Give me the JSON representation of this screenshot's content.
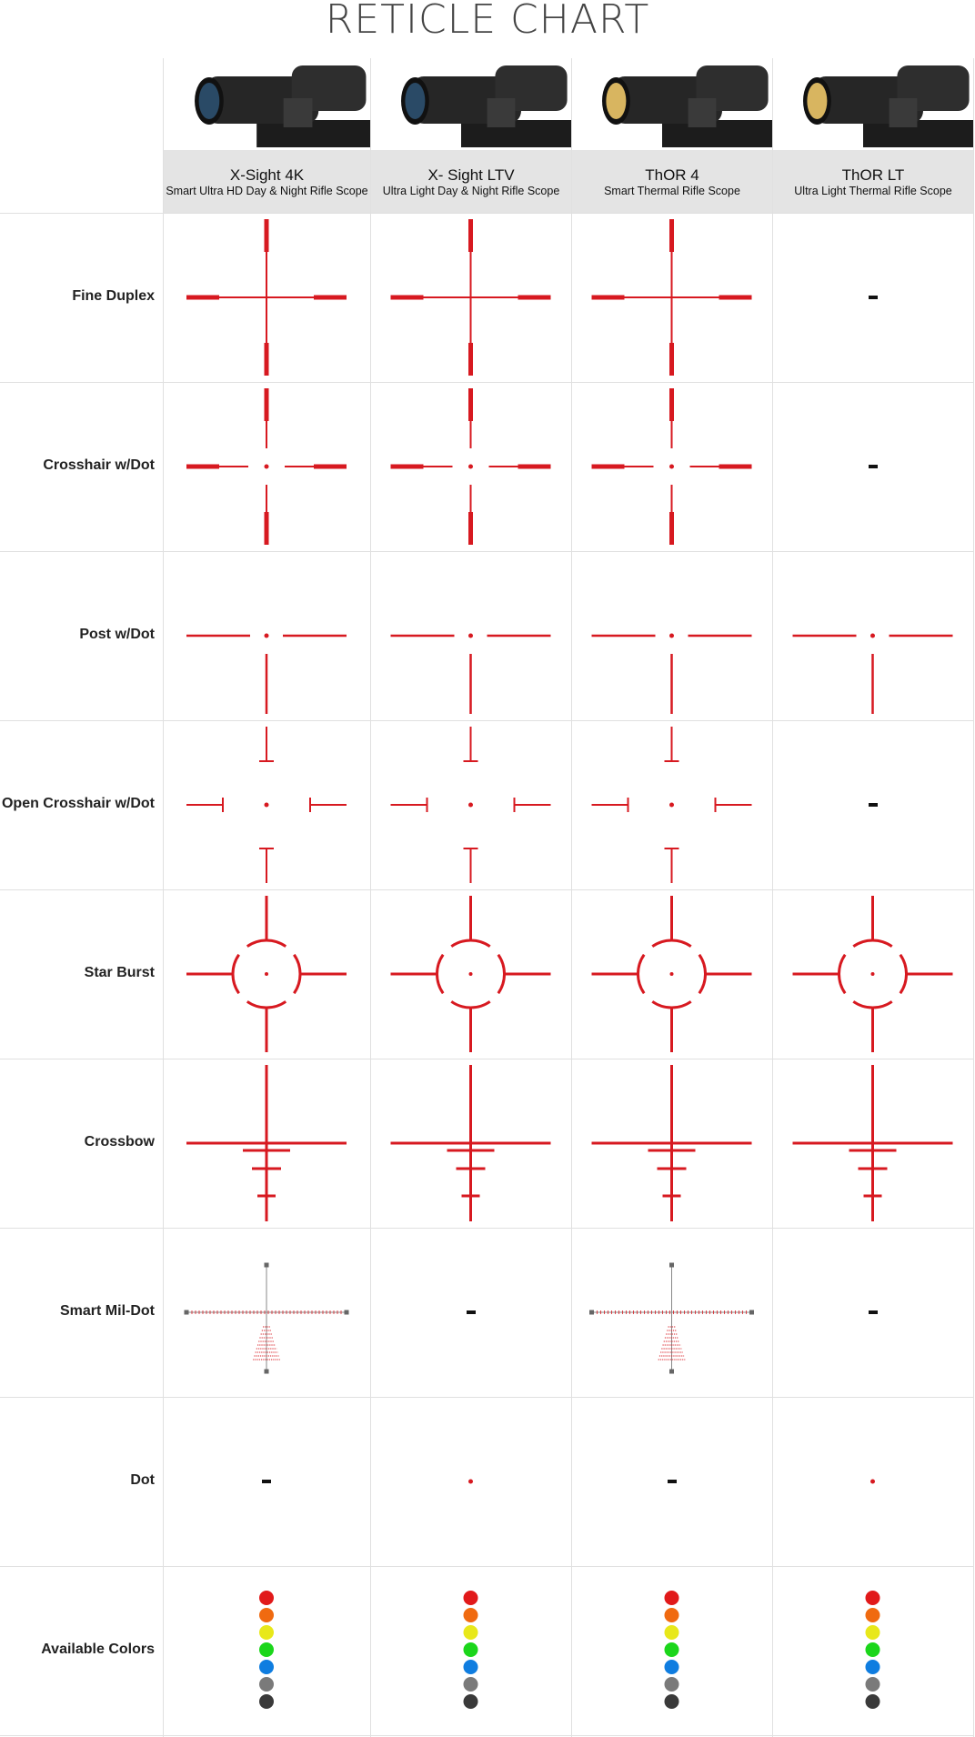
{
  "title": "RETICLE CHART",
  "accent_color": "#d71920",
  "products": [
    {
      "name": "X-Sight 4K",
      "subtitle": "Smart Ultra HD Day & Night Rifle Scope",
      "lens_color": "#2a4a66"
    },
    {
      "name": "X- Sight LTV",
      "subtitle": "Ultra Light Day & Night Rifle Scope",
      "lens_color": "#2a4a66"
    },
    {
      "name": "ThOR 4",
      "subtitle": "Smart Thermal Rifle Scope",
      "lens_color": "#d8b560"
    },
    {
      "name": "ThOR LT",
      "subtitle": "Ultra Light Thermal Rifle Scope",
      "lens_color": "#d8b560"
    }
  ],
  "rows": [
    {
      "label": "Fine Duplex",
      "reticle": "fine-duplex",
      "availability": [
        true,
        true,
        true,
        false
      ],
      "unavailable_mark": "-"
    },
    {
      "label": "Crosshair w/Dot",
      "reticle": "crosshair-dot",
      "availability": [
        true,
        true,
        true,
        false
      ],
      "unavailable_mark": "-"
    },
    {
      "label": "Post w/Dot",
      "reticle": "post-dot",
      "availability": [
        true,
        true,
        true,
        true
      ],
      "unavailable_mark": "-"
    },
    {
      "label": "Open Crosshair w/Dot",
      "reticle": "open-crosshair-dot",
      "availability": [
        true,
        true,
        true,
        false
      ],
      "unavailable_mark": "-"
    },
    {
      "label": "Star Burst",
      "reticle": "star-burst",
      "availability": [
        true,
        true,
        true,
        true
      ],
      "unavailable_mark": "-"
    },
    {
      "label": "Crossbow",
      "reticle": "crossbow",
      "availability": [
        true,
        true,
        true,
        true
      ],
      "unavailable_mark": "-"
    },
    {
      "label": "Smart Mil-Dot",
      "reticle": "smart-mil-dot",
      "availability": [
        true,
        false,
        true,
        false
      ],
      "unavailable_mark": "-"
    },
    {
      "label": "Dot",
      "reticle": "dot",
      "availability": [
        false,
        true,
        false,
        true
      ],
      "unavailable_mark": "-"
    },
    {
      "label": "Available Colors",
      "reticle": "colors",
      "availability": [
        true,
        true,
        true,
        true
      ],
      "unavailable_mark": "-"
    }
  ],
  "available_colors": [
    "#e1191a",
    "#f06a10",
    "#e8e81a",
    "#1bd61b",
    "#0f7de0",
    "#7a7a7a",
    "#3a3a3a"
  ]
}
